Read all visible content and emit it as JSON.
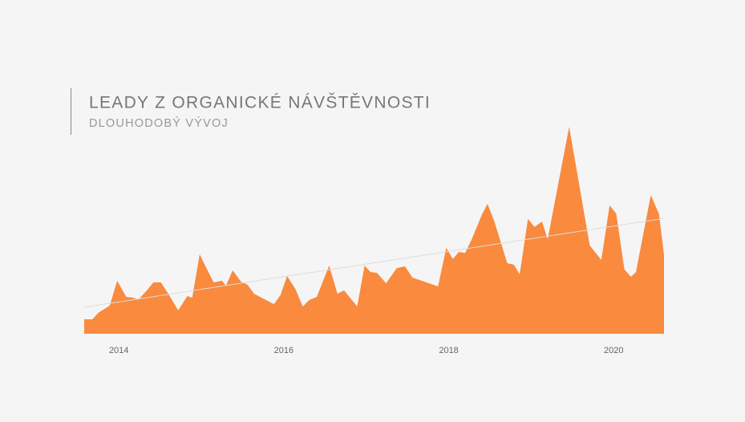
{
  "chart_data": {
    "type": "area",
    "title": "LEADY Z ORGANICKÉ NÁVŠTĚVNOSTI",
    "subtitle": "DLOUHODOBÝ VÝVOJ",
    "color": "#f98a3e",
    "x": [
      2013.58,
      2013.68,
      2013.75,
      2013.89,
      2013.98,
      2014.09,
      2014.17,
      2014.24,
      2014.34,
      2014.42,
      2014.51,
      2014.61,
      2014.72,
      2014.83,
      2014.89,
      2014.98,
      2015.07,
      2015.15,
      2015.25,
      2015.3,
      2015.38,
      2015.48,
      2015.56,
      2015.64,
      2015.77,
      2015.88,
      2015.96,
      2016.04,
      2016.14,
      2016.23,
      2016.31,
      2016.4,
      2016.55,
      2016.65,
      2016.73,
      2016.89,
      2016.98,
      2017.05,
      2017.13,
      2017.24,
      2017.37,
      2017.47,
      2017.56,
      2017.87,
      2017.97,
      2018.05,
      2018.12,
      2018.2,
      2018.28,
      2018.4,
      2018.47,
      2018.55,
      2018.71,
      2018.79,
      2018.86,
      2018.96,
      2019.04,
      2019.13,
      2019.2,
      2019.46,
      2019.71,
      2019.85,
      2019.95,
      2020.03,
      2020.13,
      2020.21,
      2020.27,
      2020.45,
      2020.55,
      2020.61
    ],
    "values": [
      6.9,
      6.9,
      10.0,
      13.5,
      25.4,
      17.7,
      17.3,
      16.5,
      20.8,
      24.6,
      24.6,
      18.5,
      11.2,
      18.1,
      17.3,
      38.1,
      30.8,
      24.6,
      25.4,
      23.1,
      30.4,
      25.0,
      23.5,
      19.2,
      16.5,
      14.2,
      18.5,
      27.7,
      21.5,
      13.1,
      16.2,
      17.7,
      32.7,
      19.2,
      20.8,
      13.1,
      32.7,
      29.6,
      29.2,
      24.2,
      31.5,
      32.3,
      26.9,
      22.7,
      41.2,
      35.8,
      39.2,
      38.8,
      45.4,
      56.9,
      62.3,
      54.2,
      33.8,
      33.1,
      28.5,
      55.0,
      51.2,
      53.8,
      45.4,
      99.2,
      42.3,
      35.4,
      61.5,
      57.7,
      30.8,
      27.3,
      29.6,
      66.5,
      57.3,
      37.7
    ],
    "trend": {
      "x": [
        2013.58,
        2020.61
      ],
      "values": [
        12.7,
        55.3
      ],
      "color": "#dddddd"
    },
    "xlim": [
      2013.58,
      2020.61
    ],
    "xticks": [
      2014,
      2016,
      2018,
      2020
    ],
    "ylim": [
      0,
      100
    ]
  }
}
